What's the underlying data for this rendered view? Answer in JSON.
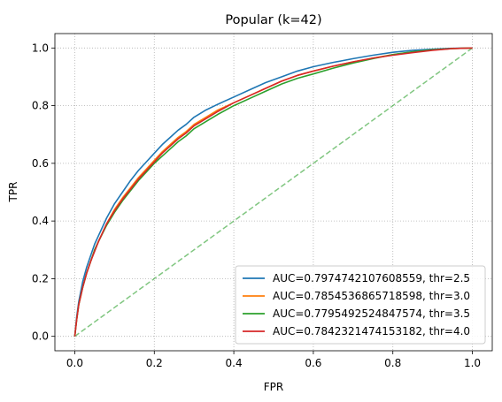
{
  "chart_data": {
    "type": "line",
    "title": "Popular (k=42)",
    "xlabel": "FPR",
    "ylabel": "TPR",
    "xlim": [
      -0.05,
      1.05
    ],
    "ylim": [
      -0.05,
      1.05
    ],
    "xticks": [
      0.0,
      0.2,
      0.4,
      0.6,
      0.8,
      1.0
    ],
    "yticks": [
      0.0,
      0.2,
      0.4,
      0.6,
      0.8,
      1.0
    ],
    "xtick_labels": [
      "0.0",
      "0.2",
      "0.4",
      "0.6",
      "0.8",
      "1.0"
    ],
    "ytick_labels": [
      "0.0",
      "0.2",
      "0.4",
      "0.6",
      "0.8",
      "1.0"
    ],
    "grid": true,
    "legend_position": "lower-right",
    "series": [
      {
        "name": "AUC=0.7974742107608559, thr=2.5",
        "color": "#1f77b4",
        "style": "solid",
        "x": [
          0,
          0.005,
          0.01,
          0.02,
          0.03,
          0.04,
          0.05,
          0.06,
          0.08,
          0.1,
          0.12,
          0.14,
          0.16,
          0.18,
          0.2,
          0.22,
          0.24,
          0.26,
          0.28,
          0.3,
          0.33,
          0.36,
          0.4,
          0.44,
          0.48,
          0.52,
          0.56,
          0.6,
          0.65,
          0.7,
          0.75,
          0.8,
          0.85,
          0.9,
          0.95,
          1.0
        ],
        "y": [
          0,
          0.07,
          0.12,
          0.19,
          0.24,
          0.28,
          0.32,
          0.35,
          0.41,
          0.46,
          0.5,
          0.54,
          0.575,
          0.605,
          0.635,
          0.665,
          0.69,
          0.715,
          0.735,
          0.76,
          0.785,
          0.805,
          0.83,
          0.855,
          0.88,
          0.9,
          0.92,
          0.935,
          0.95,
          0.963,
          0.975,
          0.985,
          0.992,
          0.996,
          0.999,
          1.0
        ]
      },
      {
        "name": "AUC=0.7854536865718598, thr=3.0",
        "color": "#ff7f0e",
        "style": "solid",
        "x": [
          0,
          0.005,
          0.01,
          0.02,
          0.03,
          0.04,
          0.05,
          0.06,
          0.08,
          0.1,
          0.12,
          0.14,
          0.16,
          0.18,
          0.2,
          0.22,
          0.24,
          0.26,
          0.28,
          0.3,
          0.33,
          0.36,
          0.4,
          0.44,
          0.48,
          0.52,
          0.56,
          0.6,
          0.65,
          0.7,
          0.75,
          0.8,
          0.85,
          0.9,
          0.95,
          1.0
        ],
        "y": [
          0,
          0.06,
          0.11,
          0.17,
          0.22,
          0.26,
          0.3,
          0.33,
          0.39,
          0.44,
          0.48,
          0.515,
          0.55,
          0.58,
          0.61,
          0.64,
          0.665,
          0.69,
          0.71,
          0.735,
          0.76,
          0.785,
          0.81,
          0.835,
          0.86,
          0.885,
          0.905,
          0.92,
          0.937,
          0.952,
          0.965,
          0.977,
          0.986,
          0.993,
          0.998,
          1.0
        ]
      },
      {
        "name": "AUC=0.7795492524847574, thr=3.5",
        "color": "#2ca02c",
        "style": "solid",
        "x": [
          0,
          0.005,
          0.01,
          0.02,
          0.03,
          0.04,
          0.05,
          0.06,
          0.08,
          0.1,
          0.12,
          0.14,
          0.16,
          0.18,
          0.2,
          0.22,
          0.24,
          0.26,
          0.28,
          0.3,
          0.33,
          0.36,
          0.4,
          0.44,
          0.48,
          0.52,
          0.56,
          0.6,
          0.65,
          0.7,
          0.75,
          0.8,
          0.85,
          0.9,
          0.95,
          1.0
        ],
        "y": [
          0,
          0.06,
          0.11,
          0.17,
          0.22,
          0.26,
          0.3,
          0.33,
          0.385,
          0.43,
          0.47,
          0.505,
          0.54,
          0.57,
          0.6,
          0.625,
          0.65,
          0.675,
          0.695,
          0.72,
          0.745,
          0.77,
          0.8,
          0.825,
          0.85,
          0.875,
          0.895,
          0.91,
          0.93,
          0.948,
          0.963,
          0.977,
          0.987,
          0.994,
          0.998,
          1.0
        ]
      },
      {
        "name": "AUC=0.7842321474153182, thr=4.0",
        "color": "#d62728",
        "style": "solid",
        "x": [
          0,
          0.005,
          0.01,
          0.02,
          0.03,
          0.04,
          0.05,
          0.06,
          0.08,
          0.1,
          0.12,
          0.14,
          0.16,
          0.18,
          0.2,
          0.22,
          0.24,
          0.26,
          0.28,
          0.3,
          0.33,
          0.36,
          0.4,
          0.44,
          0.48,
          0.52,
          0.56,
          0.6,
          0.65,
          0.7,
          0.75,
          0.8,
          0.85,
          0.9,
          0.95,
          1.0
        ],
        "y": [
          0,
          0.06,
          0.11,
          0.17,
          0.22,
          0.26,
          0.295,
          0.33,
          0.39,
          0.435,
          0.475,
          0.51,
          0.545,
          0.575,
          0.605,
          0.635,
          0.66,
          0.685,
          0.705,
          0.73,
          0.755,
          0.78,
          0.81,
          0.835,
          0.86,
          0.885,
          0.905,
          0.92,
          0.937,
          0.952,
          0.965,
          0.975,
          0.984,
          0.992,
          0.998,
          1.0
        ]
      },
      {
        "name": "chance",
        "color": "#2ca02c",
        "style": "dashed",
        "opacity": 0.6,
        "in_legend": false,
        "x": [
          0,
          1
        ],
        "y": [
          0,
          1
        ]
      }
    ]
  }
}
